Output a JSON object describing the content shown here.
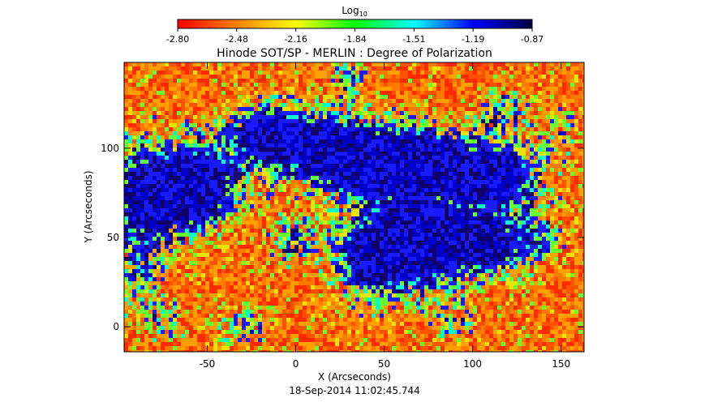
{
  "chart_data": {
    "type": "heatmap",
    "title": "Hinode SOT/SP - MERLIN : Degree of Polarization",
    "xlabel": "X (Arcseconds)",
    "ylabel": "Y (Arcseconds)",
    "footer": "18-Sep-2014 11:02:45.744",
    "colorbar": {
      "label_base": "Log",
      "label_sub": "10",
      "ticks": [
        "-2.80",
        "-2.48",
        "-2.16",
        "-1.84",
        "-1.51",
        "-1.19",
        "-0.87"
      ],
      "range": [
        -2.8,
        -0.87
      ],
      "colors": [
        "#ff0000",
        "#ff8000",
        "#ffff00",
        "#00ff00",
        "#00ffff",
        "#0000ff",
        "#000040"
      ]
    },
    "xlim": [
      -97,
      163
    ],
    "ylim": [
      -14,
      148
    ],
    "xticks": [
      -50,
      0,
      50,
      100,
      150
    ],
    "yticks": [
      0,
      50,
      100
    ]
  }
}
